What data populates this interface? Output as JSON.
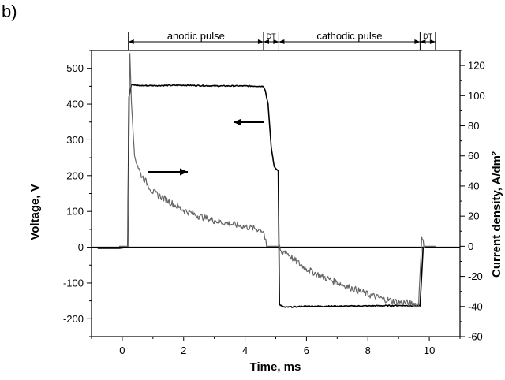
{
  "panel_label": "b)",
  "chart_data": {
    "type": "line",
    "title": "",
    "xlabel": "Time, ms",
    "ylabel_left": "Voltage, V",
    "ylabel_right": "Current density, A/dm²",
    "xlim": [
      -1,
      11
    ],
    "ylim_left": [
      -250,
      550
    ],
    "ylim_right": [
      -60,
      130
    ],
    "xticks": [
      0,
      2,
      4,
      6,
      8,
      10
    ],
    "yticks_left": [
      -200,
      -100,
      0,
      100,
      200,
      300,
      400,
      500
    ],
    "yticks_right": [
      -60,
      -40,
      -20,
      0,
      20,
      40,
      60,
      80,
      100,
      120
    ],
    "grid": false,
    "phases": [
      {
        "label": "anodic pulse",
        "start": 0.2,
        "end": 4.6
      },
      {
        "label": "DT",
        "start": 4.6,
        "end": 5.1
      },
      {
        "label": "cathodic pulse",
        "start": 5.1,
        "end": 9.7
      },
      {
        "label": "DT",
        "start": 9.7,
        "end": 10.2
      }
    ],
    "series": [
      {
        "axis": "left",
        "color": "#000000",
        "x": [
          -0.8,
          -0.1,
          0.18,
          0.22,
          0.3,
          0.5,
          1.0,
          2.0,
          3.0,
          4.0,
          4.6,
          4.65,
          4.75,
          4.85,
          4.95,
          5.0,
          5.08,
          5.12,
          5.2,
          5.3,
          6.0,
          7.0,
          8.0,
          9.0,
          9.7,
          9.8,
          10.2
        ],
        "y": [
          -3,
          -3,
          0,
          420,
          455,
          452,
          452,
          453,
          451,
          451,
          450,
          440,
          400,
          280,
          225,
          220,
          215,
          -160,
          -165,
          -168,
          -165,
          -165,
          -164,
          -163,
          -164,
          0,
          0
        ]
      },
      {
        "axis": "right",
        "color": "#666666",
        "x": [
          -0.1,
          0.18,
          0.25,
          0.3,
          0.4,
          0.6,
          1.0,
          1.5,
          2.0,
          2.5,
          3.0,
          3.5,
          4.0,
          4.5,
          4.6,
          4.7,
          5.1,
          5.2,
          5.3,
          5.6,
          6.0,
          6.5,
          7.0,
          7.5,
          8.0,
          8.5,
          9.0,
          9.5,
          9.65,
          9.75,
          9.85,
          10.2
        ],
        "y": [
          0,
          0,
          128,
          95,
          60,
          48,
          36,
          30,
          24,
          20,
          17,
          15,
          13,
          11,
          10,
          0,
          0,
          -5,
          -3,
          -9,
          -15,
          -20,
          -24,
          -28,
          -32,
          -35,
          -37,
          -38,
          -39,
          5,
          0,
          0
        ]
      }
    ]
  }
}
